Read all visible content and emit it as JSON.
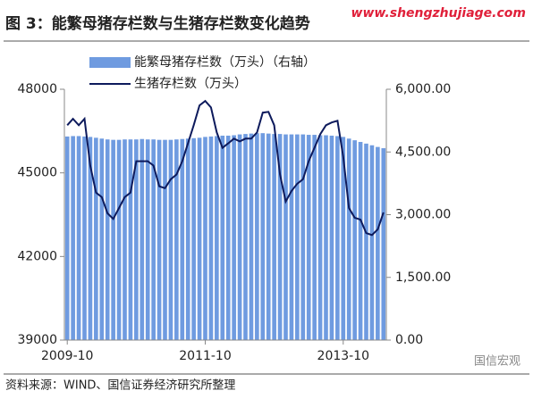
{
  "chart_data": {
    "type": "bar-line",
    "title": "图 3：能繁母猪存栏数与生猪存栏数变化趋势",
    "watermark": "www.shengzhujiage.com",
    "source": "资料来源：WIND、国信证券经济研究所整理",
    "brand": "国信宏观",
    "categories": [
      "2009-10",
      null,
      null,
      null,
      null,
      null,
      null,
      null,
      null,
      null,
      null,
      null,
      null,
      null,
      null,
      null,
      null,
      null,
      null,
      null,
      null,
      null,
      null,
      null,
      "2011-10",
      null,
      null,
      null,
      null,
      null,
      null,
      null,
      null,
      null,
      null,
      null,
      null,
      null,
      null,
      null,
      null,
      null,
      null,
      null,
      null,
      null,
      null,
      null,
      "2013-10",
      null,
      null,
      null,
      null,
      null,
      null,
      null
    ],
    "series": [
      {
        "name": "能繁母猪存栏数（万头）（右轴）",
        "color": "#6f9be0",
        "axis": "y2",
        "values": [
          4870,
          4880,
          4880,
          4870,
          4860,
          4840,
          4820,
          4800,
          4790,
          4790,
          4800,
          4800,
          4800,
          4810,
          4800,
          4800,
          4790,
          4790,
          4790,
          4800,
          4810,
          4820,
          4830,
          4840,
          4860,
          4870,
          4880,
          4890,
          4890,
          4900,
          4920,
          4930,
          4940,
          4950,
          4950,
          4940,
          4930,
          4930,
          4920,
          4920,
          4920,
          4920,
          4910,
          4910,
          4900,
          4900,
          4890,
          4880,
          4860,
          4820,
          4780,
          4740,
          4700,
          4660,
          4620,
          4590
        ]
      },
      {
        "name": "生猪存栏数（万头）",
        "color": "#0d1a5c",
        "values": [
          46710,
          46940,
          46710,
          46940,
          45260,
          44290,
          44130,
          43550,
          43350,
          43740,
          44130,
          44290,
          45420,
          45420,
          45420,
          45260,
          44520,
          44450,
          44770,
          44940,
          45420,
          46060,
          46710,
          47420,
          47580,
          47350,
          46450,
          45900,
          46060,
          46230,
          46130,
          46230,
          46230,
          46450,
          47160,
          47190,
          46710,
          44940,
          43970,
          44350,
          44610,
          44770,
          45420,
          45900,
          46390,
          46710,
          46810,
          46870,
          45580,
          43740,
          43390,
          43320,
          42840,
          42770,
          42970,
          43580
        ]
      }
    ],
    "ylim": [
      39000,
      48000
    ],
    "yticks": [
      39000,
      42000,
      45000,
      48000
    ],
    "y2lim": [
      0,
      6000
    ],
    "y2ticks": [
      {
        "value": 0,
        "label": "0.00"
      },
      {
        "value": 1500,
        "label": "1,500.00"
      },
      {
        "value": 3000,
        "label": "3,000.00"
      },
      {
        "value": 4500,
        "label": "4,500.00"
      },
      {
        "value": 6000,
        "label": "6,000.00"
      }
    ]
  }
}
